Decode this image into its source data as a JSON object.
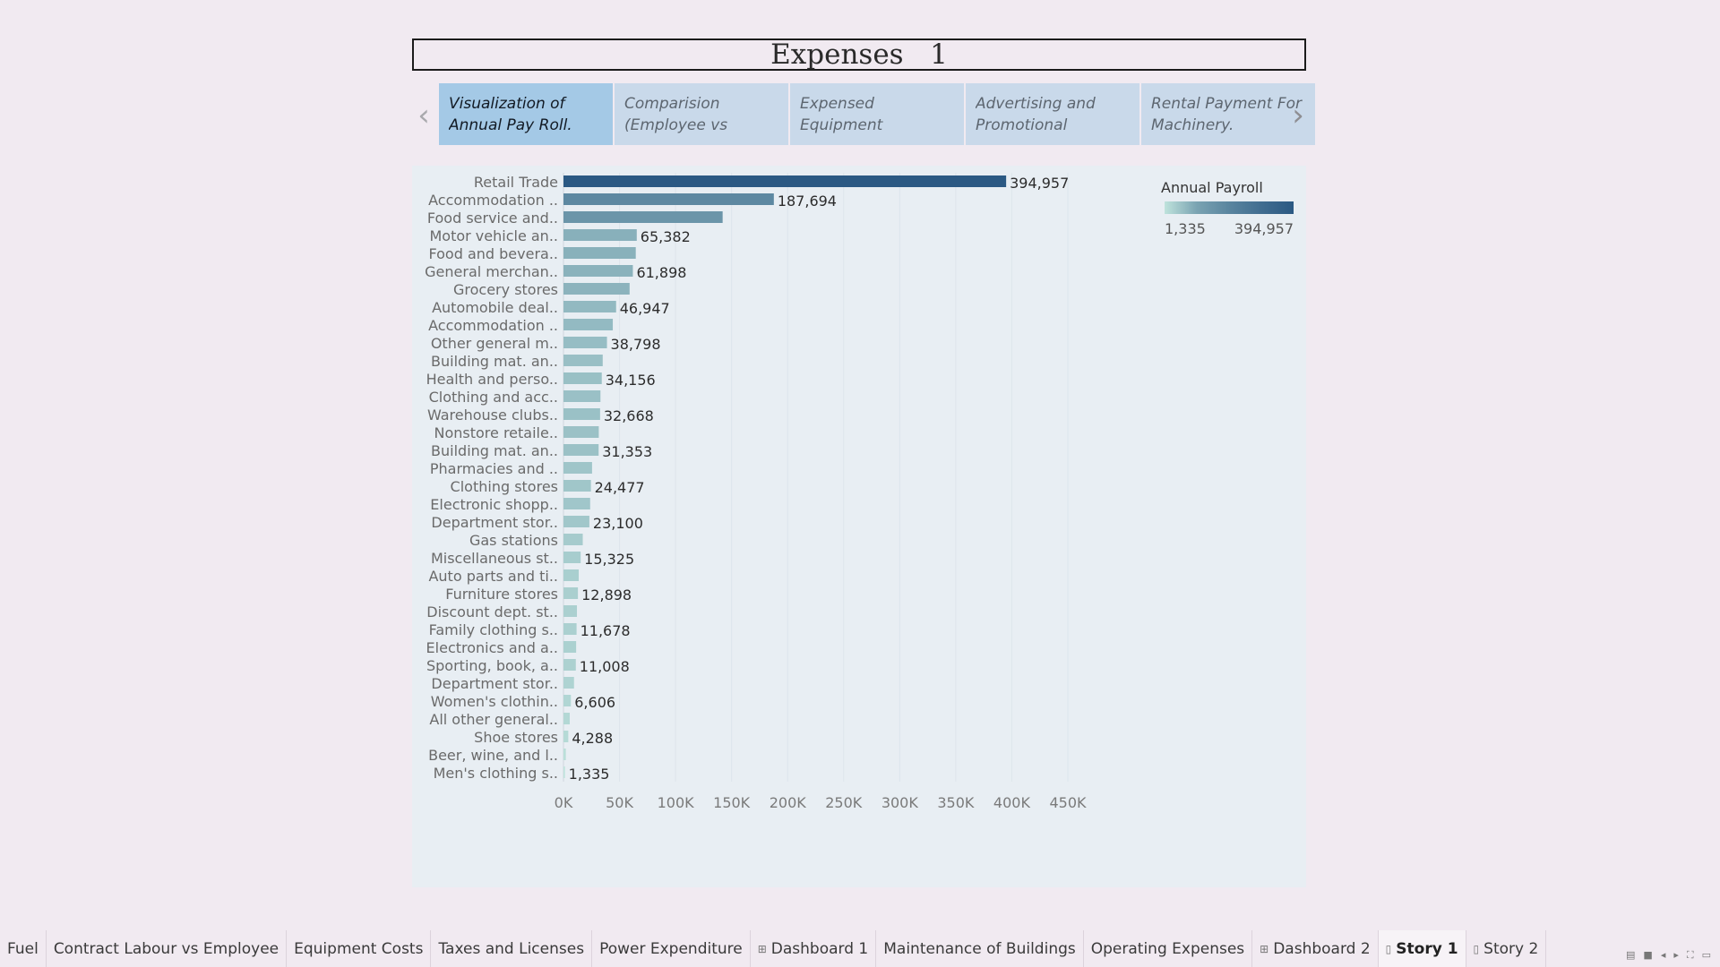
{
  "story": {
    "title": "Expenses   1"
  },
  "nav": {
    "prev_icon": "chevron-left-icon",
    "next_icon": "chevron-right-icon",
    "prev_glyph": "‹",
    "next_glyph": "›"
  },
  "story_points": [
    {
      "label": "Visualization of Annual Pay Roll.",
      "active": true
    },
    {
      "label": "Comparision (Employee vs",
      "active": false
    },
    {
      "label": "Expensed Equipment",
      "active": false
    },
    {
      "label": "Advertising and Promotional",
      "active": false
    },
    {
      "label": "Rental Payment For Machinery.",
      "active": false
    }
  ],
  "chart_data": {
    "type": "bar",
    "orientation": "horizontal",
    "xlim": [
      0,
      450000
    ],
    "x_ticks": [
      0,
      50000,
      100000,
      150000,
      200000,
      250000,
      300000,
      350000,
      400000,
      450000
    ],
    "x_tick_labels": [
      "0K",
      "50K",
      "100K",
      "150K",
      "200K",
      "250K",
      "300K",
      "350K",
      "400K",
      "450K"
    ],
    "gridlines": "vertical",
    "categories": [
      "Retail Trade",
      "Accommodation ..",
      "Food service and..",
      "Motor vehicle an..",
      "Food and bevera..",
      "General merchan..",
      "Grocery stores",
      "Automobile deal..",
      "Accommodation ..",
      "Other general m..",
      "Building mat. an..",
      "Health and perso..",
      "Clothing and acc..",
      "Warehouse clubs..",
      "Nonstore retaile..",
      "Building mat. an..",
      "Pharmacies and ..",
      "Clothing stores",
      "Electronic shopp..",
      "Department stor..",
      "Gas stations",
      "Miscellaneous st..",
      "Auto parts and ti..",
      "Furniture stores",
      "Discount dept. st..",
      "Family clothing s..",
      "Electronics and a..",
      "Sporting, book, a..",
      "Department stor..",
      "Women's clothin..",
      "All other general..",
      "Shoe stores",
      "Beer, wine, and l..",
      "Men's clothing s.."
    ],
    "values": [
      394957,
      187694,
      142000,
      65382,
      64500,
      61898,
      59000,
      46947,
      44000,
      38798,
      35000,
      34156,
      33000,
      32668,
      31500,
      31353,
      25500,
      24477,
      23800,
      23100,
      17200,
      15325,
      13600,
      12898,
      12000,
      11678,
      11300,
      11008,
      9400,
      6606,
      5600,
      4288,
      2100,
      1335
    ],
    "data_labels": [
      "394,957",
      "187,694",
      "",
      "65,382",
      "",
      "61,898",
      "",
      "46,947",
      "",
      "38,798",
      "",
      "34,156",
      "",
      "32,668",
      "",
      "31,353",
      "",
      "24,477",
      "",
      "23,100",
      "",
      "15,325",
      "",
      "12,898",
      "",
      "11,678",
      "",
      "11,008",
      "",
      "6,606",
      "",
      "4,288",
      "",
      "1,335"
    ],
    "legend": {
      "title": "Annual Payroll",
      "type": "color-gradient",
      "min": 1335,
      "max": 394957,
      "min_label": "1,335",
      "max_label": "394,957",
      "color_low": "#bfe3dc",
      "color_high": "#2b5983",
      "placement": "top-right"
    }
  },
  "tabs": [
    {
      "label": "Fuel",
      "icon": "",
      "active": false
    },
    {
      "label": "Contract Labour vs Employee",
      "icon": "",
      "active": false
    },
    {
      "label": "Equipment Costs",
      "icon": "",
      "active": false
    },
    {
      "label": "Taxes and Licenses",
      "icon": "",
      "active": false
    },
    {
      "label": "Power Expenditure",
      "icon": "",
      "active": false
    },
    {
      "label": "Dashboard 1",
      "icon": "dashboard-icon",
      "glyph": "⊞",
      "active": false
    },
    {
      "label": "Maintenance of Buildings",
      "icon": "",
      "active": false
    },
    {
      "label": "Operating Expenses",
      "icon": "",
      "active": false
    },
    {
      "label": "Dashboard 2",
      "icon": "dashboard-icon",
      "glyph": "⊞",
      "active": false
    },
    {
      "label": "Story 1",
      "icon": "story-icon",
      "glyph": "▯",
      "active": true
    },
    {
      "label": "Story 2",
      "icon": "story-icon",
      "glyph": "▯",
      "active": false
    }
  ],
  "tab_controls": [
    {
      "name": "show-filmstrip-icon",
      "glyph": "▤"
    },
    {
      "name": "show-tabs-icon",
      "glyph": "■"
    },
    {
      "name": "scroll-tabs-left-icon",
      "glyph": "◂"
    },
    {
      "name": "scroll-tabs-right-icon",
      "glyph": "▸"
    },
    {
      "name": "fullscreen-icon",
      "glyph": "⛶"
    },
    {
      "name": "presentation-mode-icon",
      "glyph": "▭"
    }
  ]
}
